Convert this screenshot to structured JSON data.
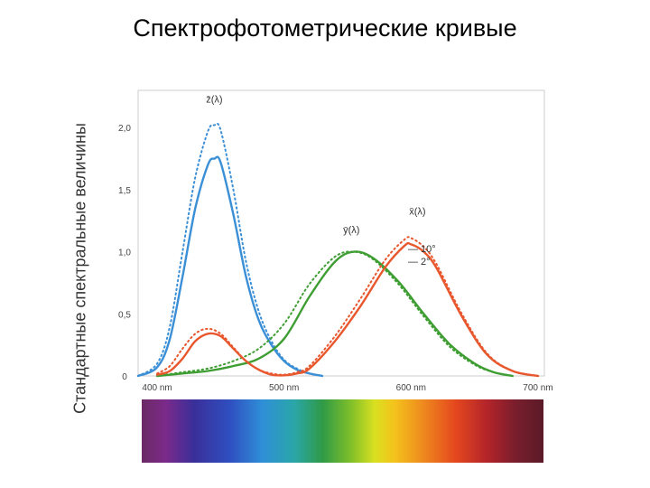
{
  "slide": {
    "title": "Спектрофотометрические кривые"
  },
  "chart_data": {
    "type": "line",
    "title": "",
    "xlabel": "",
    "ylabel": "Стандартные спектральные величины",
    "xlim": [
      385,
      705
    ],
    "ylim": [
      0,
      2.3
    ],
    "x_ticks": [
      {
        "value": 400,
        "label": "400 nm"
      },
      {
        "value": 500,
        "label": "500 nm"
      },
      {
        "value": 600,
        "label": "600 nm"
      },
      {
        "value": 700,
        "label": "700 nm"
      }
    ],
    "y_ticks": [
      {
        "value": 0,
        "label": "0"
      },
      {
        "value": 0.5,
        "label": "0,5"
      },
      {
        "value": 1.0,
        "label": "1,0"
      },
      {
        "value": 1.5,
        "label": "1,5"
      },
      {
        "value": 2.0,
        "label": "2,0"
      }
    ],
    "grid": false,
    "legend": {
      "position": "right",
      "entries": [
        {
          "label": "— 10°",
          "style": "dotted"
        },
        {
          "label": "— 2°",
          "style": "solid"
        }
      ]
    },
    "annotations": [
      {
        "label": "z̄(λ)",
        "x": 445,
        "y": 2.2
      },
      {
        "label": "ȳ(λ)",
        "x": 553,
        "y": 1.15
      },
      {
        "label": "x̄(λ)",
        "x": 605,
        "y": 1.3
      }
    ],
    "colors": {
      "x": "#e8572d",
      "y": "#3f9e33",
      "z": "#3b8fd6"
    },
    "series": [
      {
        "name": "z̄(λ)",
        "color": "#3b8fd6",
        "style": "solid",
        "x": [
          385,
          400,
          410,
          420,
          430,
          440,
          445,
          450,
          460,
          470,
          480,
          490,
          500,
          510,
          520,
          530
        ],
        "y": [
          0.0,
          0.07,
          0.3,
          0.8,
          1.35,
          1.7,
          1.75,
          1.72,
          1.3,
          0.8,
          0.45,
          0.25,
          0.12,
          0.05,
          0.02,
          0.0
        ]
      },
      {
        "name": "z̄(λ)",
        "color": "#3b8fd6",
        "style": "dotted",
        "x": [
          385,
          400,
          410,
          420,
          430,
          440,
          445,
          450,
          460,
          470,
          480,
          490,
          500,
          510,
          520,
          530
        ],
        "y": [
          0.0,
          0.1,
          0.4,
          1.0,
          1.6,
          1.97,
          2.02,
          1.98,
          1.5,
          0.92,
          0.52,
          0.28,
          0.13,
          0.06,
          0.02,
          0.0
        ]
      },
      {
        "name": "ȳ(λ)",
        "color": "#3f9e33",
        "style": "solid",
        "x": [
          400,
          420,
          440,
          460,
          480,
          500,
          520,
          540,
          555,
          570,
          590,
          610,
          630,
          650,
          665,
          680
        ],
        "y": [
          0.0,
          0.02,
          0.04,
          0.08,
          0.14,
          0.3,
          0.64,
          0.92,
          1.0,
          0.95,
          0.76,
          0.5,
          0.26,
          0.1,
          0.03,
          0.0
        ]
      },
      {
        "name": "ȳ(λ)",
        "color": "#3f9e33",
        "style": "dotted",
        "x": [
          400,
          420,
          440,
          460,
          480,
          500,
          520,
          540,
          555,
          570,
          590,
          610,
          630,
          650,
          665,
          680
        ],
        "y": [
          0.0,
          0.03,
          0.06,
          0.12,
          0.22,
          0.42,
          0.74,
          0.96,
          1.0,
          0.94,
          0.74,
          0.48,
          0.24,
          0.09,
          0.03,
          0.0
        ]
      },
      {
        "name": "x̄(λ)",
        "color": "#e8572d",
        "style": "solid",
        "x": [
          400,
          410,
          420,
          430,
          440,
          450,
          460,
          470,
          480,
          490,
          500,
          510,
          520,
          540,
          560,
          580,
          595,
          600,
          610,
          620,
          640,
          660,
          680,
          700
        ],
        "y": [
          0.01,
          0.04,
          0.14,
          0.28,
          0.34,
          0.32,
          0.22,
          0.12,
          0.05,
          0.01,
          0.005,
          0.02,
          0.06,
          0.28,
          0.56,
          0.88,
          1.05,
          1.06,
          1.0,
          0.87,
          0.48,
          0.17,
          0.04,
          0.0
        ]
      },
      {
        "name": "x̄(λ)",
        "color": "#e8572d",
        "style": "dotted",
        "x": [
          400,
          410,
          420,
          430,
          440,
          450,
          460,
          470,
          480,
          490,
          500,
          510,
          520,
          540,
          560,
          580,
          595,
          600,
          610,
          620,
          640,
          660,
          680,
          700
        ],
        "y": [
          0.02,
          0.08,
          0.22,
          0.34,
          0.38,
          0.34,
          0.23,
          0.12,
          0.05,
          0.02,
          0.01,
          0.03,
          0.08,
          0.32,
          0.62,
          0.94,
          1.1,
          1.11,
          1.04,
          0.9,
          0.5,
          0.18,
          0.04,
          0.0
        ]
      }
    ],
    "spectrum_bar": {
      "visible": true
    }
  }
}
